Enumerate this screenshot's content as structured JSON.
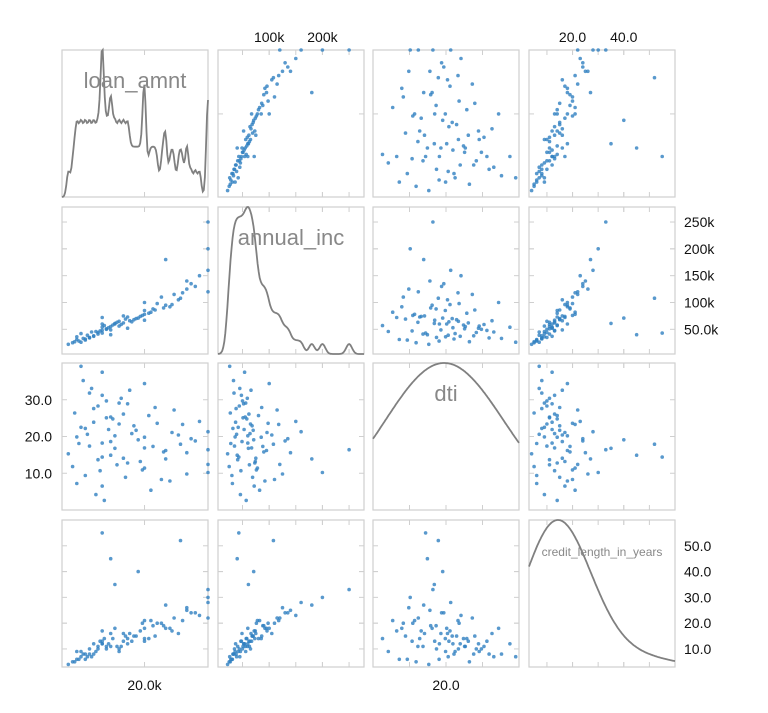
{
  "chart_data": {
    "type": "scatter",
    "subtype": "scatter-matrix",
    "variables": [
      "loan_amnt",
      "annual_inc",
      "dti",
      "credit_length_in_years"
    ],
    "ranges": [
      [
        500,
        35000
      ],
      [
        4000,
        278000
      ],
      [
        0,
        40
      ],
      [
        3,
        60
      ]
    ],
    "diagonal": "density",
    "grid": false,
    "point_color": "#2f7fc1",
    "curve_color": "#808080",
    "ticks": {
      "top": [
        {
          "var": 1,
          "labels": [
            [
              100000,
              "100k"
            ],
            [
              200000,
              "200k"
            ]
          ]
        },
        {
          "var": 3,
          "labels": [
            [
              20,
              "20.0"
            ],
            [
              40,
              "40.0"
            ]
          ]
        }
      ],
      "bottom": [
        {
          "var": 0,
          "labels": [
            [
              20000,
              "20.0k"
            ]
          ]
        },
        {
          "var": 2,
          "labels": [
            [
              20,
              "20.0"
            ]
          ]
        }
      ],
      "left": [
        {
          "var": 2,
          "labels": [
            [
              30,
              "30.0"
            ],
            [
              20,
              "20.0"
            ],
            [
              10,
              "10.0"
            ]
          ]
        }
      ],
      "right": [
        {
          "var": 1,
          "labels": [
            [
              250000,
              "250k"
            ],
            [
              200000,
              "200k"
            ],
            [
              150000,
              "150k"
            ],
            [
              100000,
              "100k"
            ],
            [
              50000,
              "50.0k"
            ]
          ]
        },
        {
          "var": 3,
          "labels": [
            [
              50,
              "50.0"
            ],
            [
              40,
              "40.0"
            ],
            [
              30,
              "30.0"
            ],
            [
              20,
              "20.0"
            ],
            [
              10,
              "10.0"
            ]
          ]
        }
      ]
    },
    "rows": [
      [
        10000,
        60000,
        18.2,
        12
      ],
      [
        5000,
        42000,
        22.5,
        9
      ],
      [
        15000,
        75000,
        14.1,
        16
      ],
      [
        35000,
        120000,
        12.4,
        22
      ],
      [
        12000,
        55000,
        25.3,
        11
      ],
      [
        20000,
        85000,
        19.8,
        14
      ],
      [
        8000,
        38000,
        27.6,
        8
      ],
      [
        25000,
        95000,
        16.2,
        18
      ],
      [
        6000,
        30000,
        9.4,
        6
      ],
      [
        10000,
        48000,
        31.2,
        13
      ],
      [
        18000,
        70000,
        21.7,
        15
      ],
      [
        3000,
        25000,
        11.8,
        5
      ],
      [
        24000,
        110000,
        8.3,
        20
      ],
      [
        14000,
        65000,
        23.4,
        10
      ],
      [
        30000,
        140000,
        15.6,
        25
      ],
      [
        7500,
        45000,
        33.1,
        7
      ],
      [
        16000,
        52000,
        28.9,
        12
      ],
      [
        10000,
        72000,
        6.5,
        17
      ],
      [
        22000,
        88000,
        17.3,
        19
      ],
      [
        4000,
        36000,
        19.9,
        9
      ],
      [
        35000,
        200000,
        10.2,
        30
      ],
      [
        12500,
        58000,
        24.8,
        14
      ],
      [
        9000,
        41000,
        13.7,
        11
      ],
      [
        28000,
        105000,
        20.4,
        16
      ],
      [
        5500,
        33000,
        35.2,
        8
      ],
      [
        15000,
        62000,
        26.1,
        13
      ],
      [
        20000,
        78000,
        11.4,
        21
      ],
      [
        11000,
        50000,
        29.7,
        10
      ],
      [
        32000,
        130000,
        18.8,
        24
      ],
      [
        2000,
        22000,
        15.3,
        4
      ],
      [
        17500,
        68000,
        22.9,
        15
      ],
      [
        10000,
        54000,
        37.5,
        12
      ],
      [
        26000,
        92000,
        7.9,
        18
      ],
      [
        6500,
        39000,
        20.6,
        7
      ],
      [
        13000,
        61000,
        16.8,
        35
      ],
      [
        21000,
        80000,
        25.7,
        14
      ],
      [
        8500,
        46000,
        4.2,
        9
      ],
      [
        35000,
        160000,
        21.3,
        28
      ],
      [
        14500,
        59000,
        30.4,
        11
      ],
      [
        19000,
        74000,
        13.2,
        17
      ],
      [
        4500,
        28000,
        18.1,
        6
      ],
      [
        23000,
        98000,
        23.6,
        20
      ],
      [
        9500,
        47000,
        10.7,
        13
      ],
      [
        27000,
        115000,
        27.2,
        22
      ],
      [
        12000,
        40000,
        14.9,
        45
      ],
      [
        16500,
        66000,
        32.6,
        16
      ],
      [
        7000,
        35000,
        17.4,
        10
      ],
      [
        30000,
        125000,
        9.8,
        26
      ],
      [
        11500,
        53000,
        21.9,
        12
      ],
      [
        18500,
        71000,
        19.1,
        40
      ],
      [
        3500,
        27000,
        26.4,
        5
      ],
      [
        24500,
        90000,
        15.8,
        19
      ],
      [
        10500,
        57000,
        2.6,
        14
      ],
      [
        33000,
        150000,
        24.1,
        23
      ],
      [
        13500,
        63000,
        12.3,
        11
      ],
      [
        20000,
        100000,
        34.4,
        18
      ],
      [
        6000,
        32000,
        22.2,
        8
      ],
      [
        15500,
        69000,
        8.9,
        15
      ],
      [
        28500,
        108000,
        17.9,
        52
      ],
      [
        9000,
        44000,
        28.3,
        10
      ],
      [
        21500,
        82000,
        5.4,
        21
      ],
      [
        5000,
        26000,
        39.1,
        7
      ],
      [
        17000,
        64000,
        20.8,
        13
      ],
      [
        25000,
        180000,
        13.9,
        27
      ],
      [
        12000,
        49000,
        18.6,
        16
      ],
      [
        35000,
        250000,
        16.4,
        33
      ],
      [
        8000,
        37000,
        23.9,
        12
      ],
      [
        19500,
        76000,
        10.9,
        20
      ],
      [
        14000,
        56000,
        29.1,
        9
      ],
      [
        26500,
        96000,
        21.1,
        17
      ],
      [
        10000,
        43000,
        14.4,
        55
      ],
      [
        22500,
        86000,
        27.9,
        15
      ],
      [
        4000,
        31000,
        7.2,
        6
      ],
      [
        31000,
        135000,
        19.4,
        24
      ],
      [
        11000,
        51000,
        25.1,
        11
      ],
      [
        16000,
        73000,
        12.8,
        14
      ],
      [
        7000,
        34000,
        31.8,
        8
      ],
      [
        20000,
        67000,
        16.9,
        13
      ],
      [
        13000,
        60000,
        20.2,
        18
      ],
      [
        29000,
        118000,
        23.3,
        21
      ]
    ]
  }
}
